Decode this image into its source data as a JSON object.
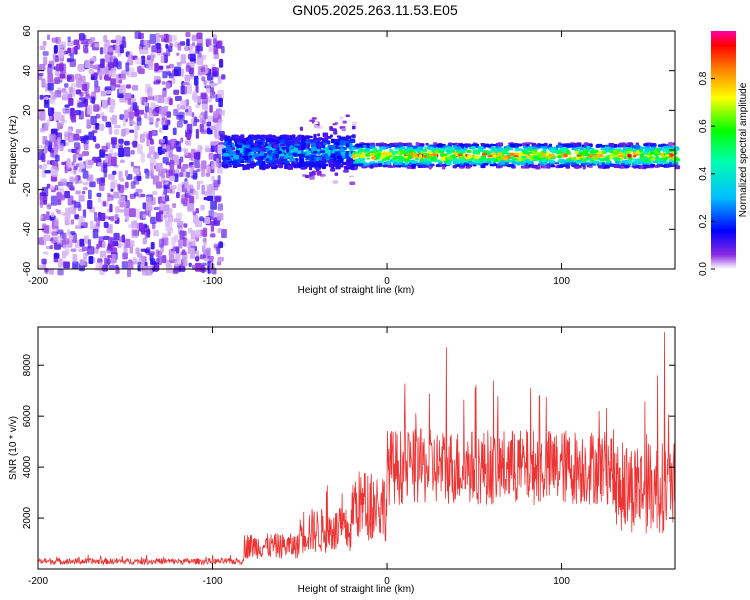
{
  "title": "GN05.2025.263.11.53.E05",
  "chart_data": [
    {
      "type": "heatmap",
      "name": "spectrogram",
      "xlabel": "Height of straight line (km)",
      "ylabel": "Frequency (Hz)",
      "xlim": [
        -200,
        165
      ],
      "ylim": [
        -60,
        60
      ],
      "xticks": [
        -200,
        -100,
        0,
        100
      ],
      "yticks": [
        -60,
        -40,
        -20,
        0,
        20,
        40,
        60
      ],
      "ytick_labels": [
        "-60",
        "-40",
        "-20",
        "0",
        "20",
        "40",
        "60"
      ],
      "colorbar": {
        "label": "Normalized spectral amplitude",
        "range": [
          0,
          1
        ],
        "ticks": [
          0.0,
          0.2,
          0.4,
          0.6,
          0.8
        ],
        "tick_labels": [
          "0.0",
          "0.2",
          "0.4",
          "0.6",
          "0.8"
        ]
      },
      "regions": [
        {
          "x_range": [
            -200,
            -95
          ],
          "freq_range": [
            -60,
            60
          ],
          "amplitude_range": [
            0.0,
            0.12
          ],
          "description_kind": "broadband noise"
        },
        {
          "x_range": [
            -95,
            -20
          ],
          "freq_center": 0,
          "freq_halfwidth": 8,
          "amplitude_range": [
            0.1,
            0.4
          ]
        },
        {
          "x_range": [
            -20,
            165
          ],
          "freq_center": -2,
          "freq_halfwidth": 4,
          "amplitude_range": [
            0.3,
            1.0
          ]
        }
      ]
    },
    {
      "type": "line",
      "name": "snr",
      "xlabel": "Height of straight line (km)",
      "ylabel": "SNR (10 * v/v)",
      "xlim": [
        -200,
        165
      ],
      "ylim": [
        0,
        9500
      ],
      "xticks": [
        -200,
        -100,
        0,
        100
      ],
      "yticks": [
        2000,
        4000,
        6000,
        8000
      ],
      "color": "#ee3333",
      "segments": [
        {
          "x_range": [
            -200,
            -82
          ],
          "mean": 300,
          "spread": 120
        },
        {
          "x_range": [
            -82,
            -50
          ],
          "mean": 900,
          "spread": 500
        },
        {
          "x_range": [
            -50,
            -20
          ],
          "mean": 1500,
          "spread": 900
        },
        {
          "x_range": [
            -20,
            0
          ],
          "mean": 2500,
          "spread": 1400
        },
        {
          "x_range": [
            0,
            130
          ],
          "mean": 4000,
          "spread": 1500
        },
        {
          "x_range": [
            130,
            165
          ],
          "mean": 3200,
          "spread": 1800
        }
      ],
      "peaks": [
        {
          "x": 34,
          "y": 8700
        },
        {
          "x": 159,
          "y": 9300
        },
        {
          "x": 155,
          "y": 7600
        },
        {
          "x": 61,
          "y": 7400
        }
      ]
    }
  ]
}
